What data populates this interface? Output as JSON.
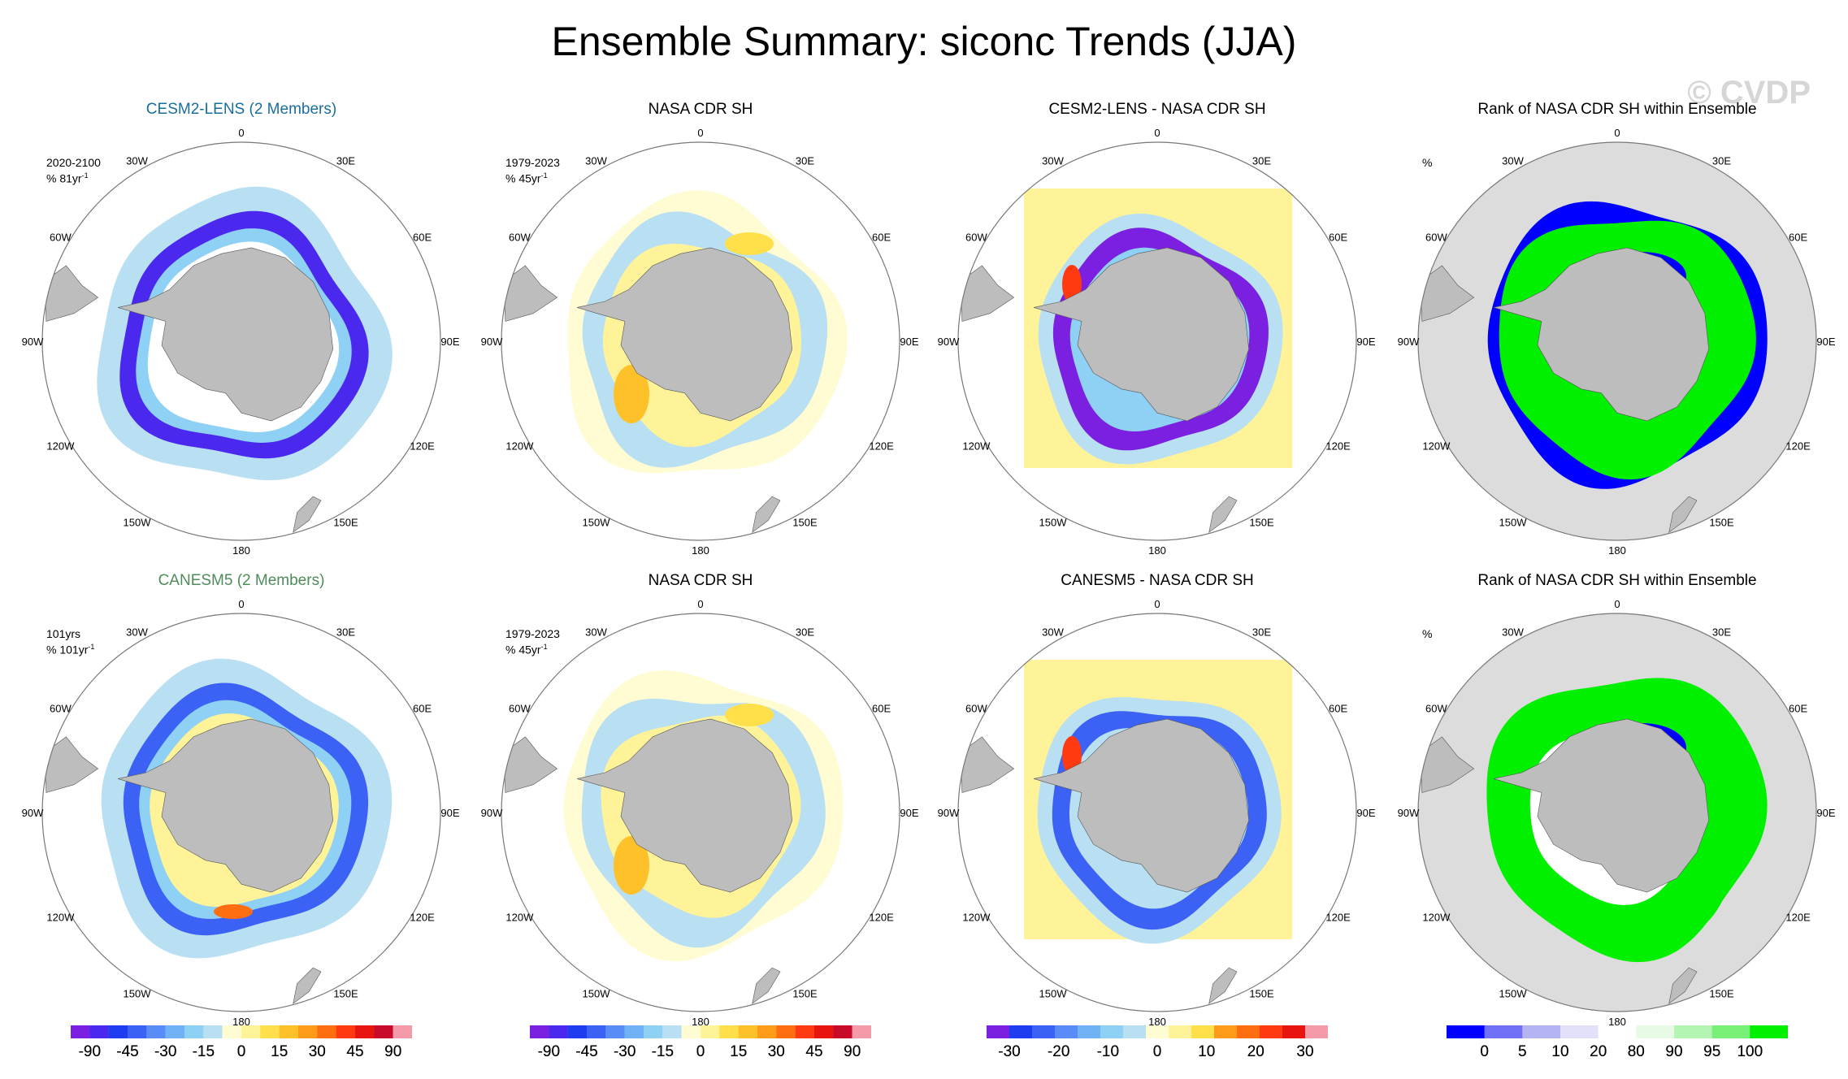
{
  "title": "Ensemble Summary: siconc Trends (JJA)",
  "watermark": "© CVDP",
  "lon_labels": [
    "0",
    "30E",
    "60E",
    "90E",
    "120E",
    "150E",
    "180",
    "150W",
    "120W",
    "90W",
    "60W",
    "30W"
  ],
  "colors": {
    "model1_title": "#1a6e9c",
    "model2_title": "#4e8c5a",
    "land": "#bdbdbd",
    "rank_background": "#dcdcdc"
  },
  "rows": [
    {
      "panels": [
        {
          "title": "CESM2-LENS (2 Members)",
          "title_color": "#1a6e9c",
          "note_line1": "2020-2100",
          "note_line2": "% 81yr",
          "note_sup": "-1",
          "kind": "model",
          "colorbar": "pct90"
        },
        {
          "title": "NASA CDR SH",
          "note_line1": "1979-2023",
          "note_line2": "% 45yr",
          "note_sup": "-1",
          "kind": "obs",
          "colorbar": "pct90"
        },
        {
          "title": "CESM2-LENS - NASA CDR SH",
          "kind": "diff",
          "colorbar": "pct30"
        },
        {
          "title": "Rank of NASA CDR SH within Ensemble",
          "note_line1": "%",
          "kind": "rank",
          "colorbar": "rank"
        }
      ]
    },
    {
      "panels": [
        {
          "title": "CANESM5 (2 Members)",
          "title_color": "#4e8c5a",
          "note_line1": "101yrs",
          "note_line2": "% 101yr",
          "note_sup": "-1",
          "kind": "model",
          "colorbar": "pct90"
        },
        {
          "title": "NASA CDR SH",
          "note_line1": "1979-2023",
          "note_line2": "% 45yr",
          "note_sup": "-1",
          "kind": "obs",
          "colorbar": "pct90"
        },
        {
          "title": "CANESM5 - NASA CDR SH",
          "kind": "diff",
          "colorbar": "pct30"
        },
        {
          "title": "Rank of NASA CDR SH within Ensemble",
          "note_line1": "%",
          "kind": "rank",
          "colorbar": "rank"
        }
      ]
    }
  ],
  "colorbars": [
    {
      "id": "pct90",
      "colors": [
        "#7b1fe0",
        "#4b28ee",
        "#1f3df0",
        "#3b62f5",
        "#5a8cf7",
        "#6fb2f5",
        "#8fd0f5",
        "#b8dff2",
        "#fffbd2",
        "#fff39a",
        "#ffdf4a",
        "#ffc12a",
        "#ff9b18",
        "#ff6e10",
        "#ff3a10",
        "#e81410",
        "#c80a2a",
        "#f59aa8"
      ],
      "labels": [
        "-90",
        "-45",
        "-30",
        "-15",
        "0",
        "15",
        "30",
        "45",
        "90"
      ]
    },
    {
      "id": "pct90b",
      "colors": [
        "#7b1fe0",
        "#4b28ee",
        "#1f3df0",
        "#3b62f5",
        "#5a8cf7",
        "#6fb2f5",
        "#8fd0f5",
        "#b8dff2",
        "#fffbd2",
        "#fff39a",
        "#ffdf4a",
        "#ffc12a",
        "#ff9b18",
        "#ff6e10",
        "#ff3a10",
        "#e81410",
        "#c80a2a",
        "#f59aa8"
      ],
      "labels": [
        "-90",
        "-45",
        "-30",
        "-15",
        "0",
        "15",
        "30",
        "45",
        "90"
      ]
    },
    {
      "id": "pct30",
      "colors": [
        "#7b1fe0",
        "#1f3df0",
        "#3b62f5",
        "#5a8cf7",
        "#6fb2f5",
        "#8fd0f5",
        "#b8dff2",
        "#fffbd2",
        "#fff39a",
        "#ffdf4a",
        "#ff9b18",
        "#ff6e10",
        "#ff3a10",
        "#e81410",
        "#f59aa8"
      ],
      "labels": [
        "-30",
        "-20",
        "-10",
        "0",
        "10",
        "20",
        "30"
      ]
    },
    {
      "id": "rank",
      "colors": [
        "#0000ff",
        "#7070f8",
        "#b4b4f5",
        "#e1e1fa",
        "#ffffff",
        "#e6fae6",
        "#b4f5b4",
        "#78f078",
        "#00f000"
      ],
      "labels": [
        "0",
        "5",
        "10",
        "20",
        "80",
        "90",
        "95",
        "100"
      ]
    }
  ],
  "chart_data": [
    {
      "type": "heatmap",
      "title": "CESM2-LENS (2 Members)",
      "subtitle": "2020-2100, % 81yr-1",
      "projection": "south polar stereographic",
      "variable": "siconc trend (JJA)",
      "color_levels": [
        -90,
        -45,
        -30,
        -15,
        0,
        15,
        30,
        45,
        90
      ]
    },
    {
      "type": "heatmap",
      "title": "NASA CDR SH",
      "subtitle": "1979-2023, % 45yr-1",
      "projection": "south polar stereographic",
      "variable": "siconc trend (JJA)",
      "color_levels": [
        -90,
        -45,
        -30,
        -15,
        0,
        15,
        30,
        45,
        90
      ]
    },
    {
      "type": "heatmap",
      "title": "CESM2-LENS - NASA CDR SH",
      "projection": "south polar stereographic",
      "variable": "siconc trend difference (JJA)",
      "color_levels": [
        -30,
        -20,
        -10,
        0,
        10,
        20,
        30
      ]
    },
    {
      "type": "heatmap",
      "title": "Rank of NASA CDR SH within Ensemble",
      "subtitle": "%",
      "projection": "south polar stereographic",
      "variable": "rank percentile",
      "color_levels": [
        0,
        5,
        10,
        20,
        80,
        90,
        95,
        100
      ]
    },
    {
      "type": "heatmap",
      "title": "CANESM5 (2 Members)",
      "subtitle": "101yrs, % 101yr-1",
      "projection": "south polar stereographic",
      "variable": "siconc trend (JJA)",
      "color_levels": [
        -90,
        -45,
        -30,
        -15,
        0,
        15,
        30,
        45,
        90
      ]
    },
    {
      "type": "heatmap",
      "title": "NASA CDR SH",
      "subtitle": "1979-2023, % 45yr-1",
      "projection": "south polar stereographic",
      "variable": "siconc trend (JJA)",
      "color_levels": [
        -90,
        -45,
        -30,
        -15,
        0,
        15,
        30,
        45,
        90
      ]
    },
    {
      "type": "heatmap",
      "title": "CANESM5 - NASA CDR SH",
      "projection": "south polar stereographic",
      "variable": "siconc trend difference (JJA)",
      "color_levels": [
        -30,
        -20,
        -10,
        0,
        10,
        20,
        30
      ]
    },
    {
      "type": "heatmap",
      "title": "Rank of NASA CDR SH within Ensemble",
      "subtitle": "%",
      "projection": "south polar stereographic",
      "variable": "rank percentile",
      "color_levels": [
        0,
        5,
        10,
        20,
        80,
        90,
        95,
        100
      ]
    }
  ]
}
